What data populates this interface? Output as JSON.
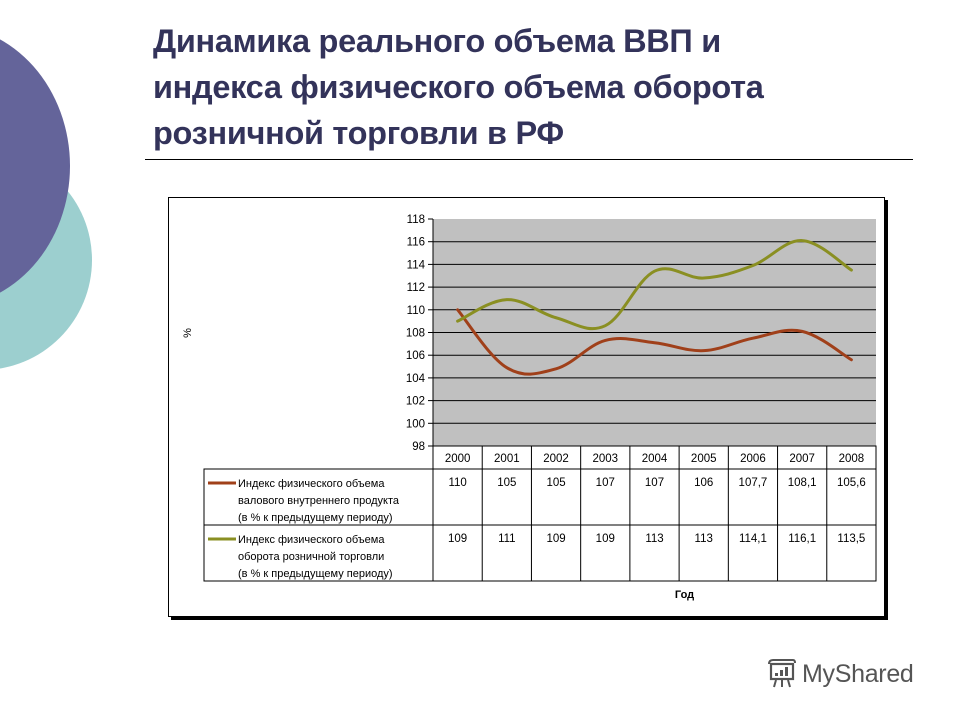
{
  "slide": {
    "title_lines": [
      "Динамика реального объема ВВП и",
      "индекса физического объема оборота",
      "розничной торговли в РФ"
    ],
    "colors": {
      "title": "#33335a",
      "deco_purple": "#64649a",
      "deco_teal": "#9ccfcf",
      "plot_background": "#c0c0c0"
    }
  },
  "watermark": {
    "icon": "presentation-board-icon",
    "text": "MyShared"
  },
  "chart_data": {
    "type": "line",
    "title": "",
    "xlabel": "Год",
    "ylabel": "%",
    "ylim": [
      98,
      118
    ],
    "yticks": [
      "118",
      "116",
      "114",
      "112",
      "110",
      "108",
      "106",
      "104",
      "102",
      "100",
      "98"
    ],
    "grid": true,
    "legend_position": "data-table",
    "categories": [
      "2000",
      "2001",
      "2002",
      "2003",
      "2004",
      "2005",
      "2006",
      "2007",
      "2008"
    ],
    "series": [
      {
        "name": "Индекс физического объема валового внутреннего продукта (в % к предыдущему периоду)",
        "label_lines": [
          "Индекс физического объема",
          "валового внутреннего продукта",
          "(в % к предыдущему периоду)"
        ],
        "color": "#a0401a",
        "values": [
          110,
          105,
          105,
          107,
          107,
          106,
          107.7,
          108.1,
          105.6
        ],
        "display_values": [
          "110",
          "105",
          "105",
          "107",
          "107",
          "106",
          "107,7",
          "108,1",
          "105,6"
        ],
        "plotted_values": [
          110,
          104.9,
          104.8,
          107.3,
          107.1,
          106.4,
          107.5,
          108.1,
          105.6
        ]
      },
      {
        "name": "Индекс физического объема оборота розничной торговли (в % к предыдущему периоду)",
        "label_lines": [
          "Индекс физического объема",
          "оборота розничной торговли",
          "(в % к предыдущему периоду)"
        ],
        "color": "#8a8f22",
        "values": [
          109,
          111,
          109,
          109,
          113,
          113,
          114.1,
          116.1,
          113.5
        ],
        "display_values": [
          "109",
          "111",
          "109",
          "109",
          "113",
          "113",
          "114,1",
          "116,1",
          "113,5"
        ],
        "plotted_values": [
          109,
          110.9,
          109.3,
          108.6,
          113.4,
          112.8,
          113.9,
          116.1,
          113.5
        ]
      }
    ]
  }
}
